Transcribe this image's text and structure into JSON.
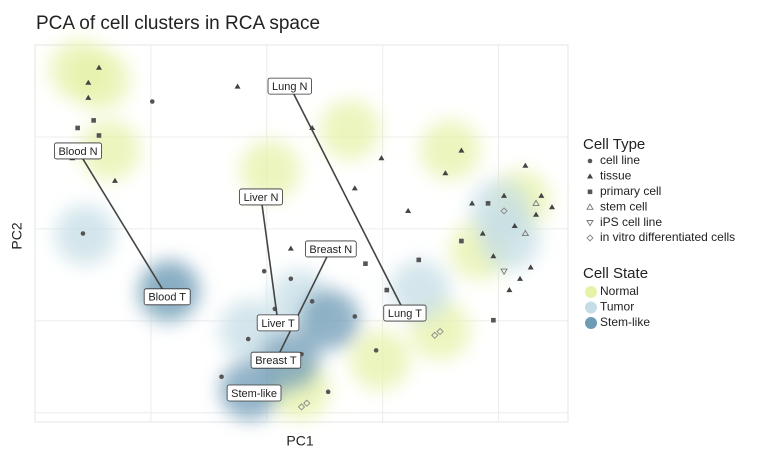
{
  "chart_data": {
    "type": "scatter",
    "title": "PCA of cell clusters in RCA space",
    "xlabel": "PC1",
    "ylabel": "PC2",
    "xlim": [
      0,
      100
    ],
    "ylim": [
      0,
      100
    ],
    "grid": true,
    "legend_title": "Cell Type",
    "series": [
      {
        "name": "cell line",
        "marker": "circle",
        "color": "#555555",
        "x": [
          22,
          9,
          43,
          48,
          45,
          52,
          40,
          50,
          64,
          60,
          35,
          55
        ],
        "y": [
          85,
          50,
          40,
          38,
          30,
          32,
          22,
          18,
          19,
          28,
          12,
          8
        ]
      },
      {
        "name": "tissue",
        "marker": "triangle",
        "color": "#444444",
        "x": [
          12,
          10,
          7,
          15,
          38,
          52,
          60,
          65,
          70,
          77,
          80,
          82,
          84,
          86,
          88,
          90,
          92,
          94,
          95,
          97,
          89,
          91,
          93,
          48,
          10
        ],
        "y": [
          94,
          86,
          70,
          64,
          89,
          78,
          62,
          70,
          56,
          66,
          72,
          58,
          50,
          44,
          60,
          52,
          68,
          55,
          60,
          57,
          35,
          38,
          41,
          46,
          90
        ]
      },
      {
        "name": "primary cell",
        "marker": "square",
        "color": "#555555",
        "x": [
          11,
          12,
          8,
          62,
          66,
          72,
          86,
          80,
          85
        ],
        "y": [
          80,
          76,
          78,
          42,
          35,
          43,
          27,
          48,
          58
        ]
      },
      {
        "name": "stem cell",
        "marker": "triangle-open",
        "color": "#777777",
        "x": [
          92,
          94
        ],
        "y": [
          50,
          58
        ]
      },
      {
        "name": "iPS cell line",
        "marker": "triangle-down-open",
        "color": "#777777",
        "x": [
          88
        ],
        "y": [
          40
        ]
      },
      {
        "name": "in vitro differentiated cells",
        "marker": "diamond-open",
        "color": "#888888",
        "x": [
          75,
          76,
          50,
          51,
          88
        ],
        "y": [
          23,
          24,
          4,
          5,
          56
        ]
      }
    ],
    "states": {
      "title": "Cell State",
      "series": [
        {
          "name": "Normal",
          "color": "#e6f2a8",
          "x": [
            8.4,
            12.2,
            44.1,
            77.9,
            83.5,
            91.0,
            76.0,
            64.7,
            49.7,
            14.1,
            59.1
          ],
          "y": [
            93.4,
            90.7,
            66.8,
            72.1,
            45.6,
            58.9,
            24.4,
            16.4,
            8.5,
            72.1,
            77.5
          ]
        },
        {
          "name": "Tumor",
          "color": "#c5dde6",
          "x": [
            9.4,
            24.4,
            49.7,
            72.2,
            87.2,
            40.3,
            89.1
          ],
          "y": [
            49.6,
            33.7,
            32.4,
            35.0,
            56.2,
            24.4,
            48.3
          ]
        },
        {
          "name": "Stem-like",
          "color": "#6f9bb5",
          "x": [
            40.3,
            47.8,
            55.3,
            25.3
          ],
          "y": [
            8.5,
            16.4,
            27.1,
            35.0
          ]
        }
      ]
    },
    "connections": [
      {
        "from": {
          "text": "Blood N",
          "x": 8.07,
          "y": 71.9
        },
        "to": {
          "text": "Blood T",
          "x": 24.8,
          "y": 33.2
        }
      },
      {
        "from": {
          "text": "Liver N",
          "x": 42.4,
          "y": 59.7
        },
        "to": {
          "text": "Liver T",
          "x": 45.6,
          "y": 26.3
        }
      },
      {
        "from": {
          "text": "Breast N",
          "x": 55.5,
          "y": 45.9
        },
        "to": {
          "text": "Breast T",
          "x": 45.2,
          "y": 16.4
        }
      },
      {
        "from": {
          "text": "Lung N",
          "x": 47.8,
          "y": 89.1
        },
        "to": {
          "text": "Lung T",
          "x": 69.4,
          "y": 28.9
        }
      }
    ],
    "annotations": [
      {
        "text": "Stem-like",
        "x": 41.1,
        "y": 7.7
      }
    ]
  }
}
